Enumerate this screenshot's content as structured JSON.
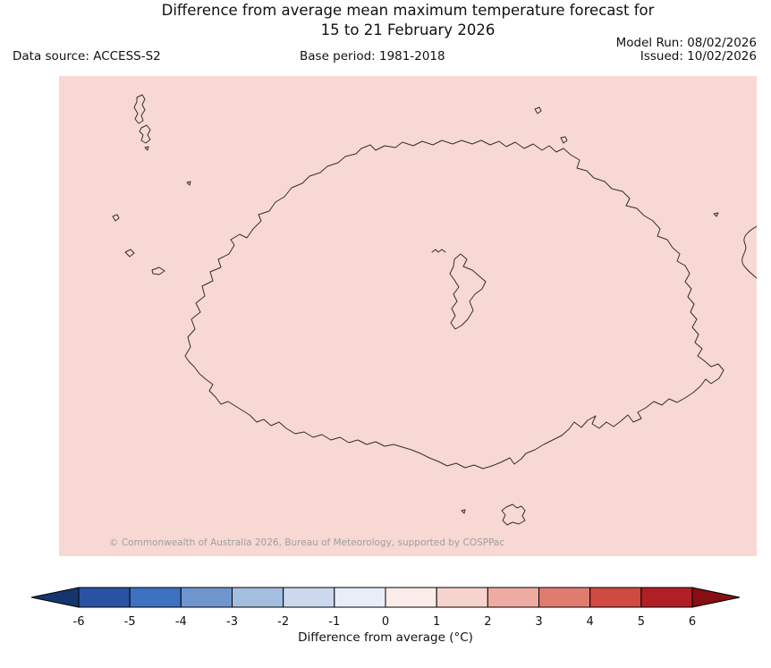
{
  "title": {
    "line1": "Difference from average mean maximum temperature forecast for",
    "line2": "15 to 21 February 2026"
  },
  "header": {
    "data_source": "Data source: ACCESS-S2",
    "base_period": "Base period: 1981-2018",
    "model_run": "Model Run: 08/02/2026",
    "issued": "Issued: 10/02/2026"
  },
  "map": {
    "copyright": "© Commonwealth of Australia 2026, Bureau of Meteorology, supported by COSPPac",
    "background_color": "#f8d8d3",
    "coastline_color": "#2f2f2f"
  },
  "colorbar": {
    "label": "Difference from average (°C)",
    "tick_labels": [
      "-6",
      "-5",
      "-4",
      "-3",
      "-2",
      "-1",
      "0",
      "1",
      "2",
      "3",
      "4",
      "5",
      "6"
    ],
    "left_arrow_color": "#16356f",
    "right_arrow_color": "#870e12",
    "segment_colors": [
      "#2a52a2",
      "#3c72c0",
      "#6f95cf",
      "#a3bede",
      "#cbd8ee",
      "#e8edf8",
      "#fbece9",
      "#f6d3cd",
      "#efaba1",
      "#e07b70",
      "#d04a41",
      "#b01f26"
    ]
  }
}
